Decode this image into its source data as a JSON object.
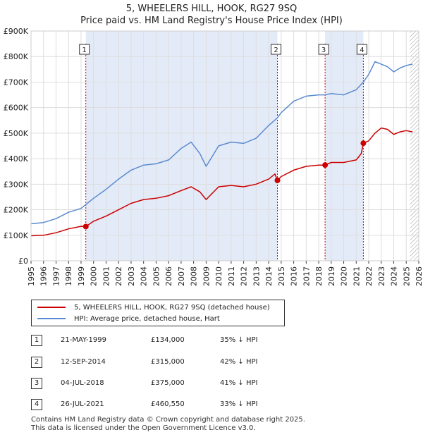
{
  "title_line1": "5, WHEELERS HILL, HOOK, RG27 9SQ",
  "title_line2": "Price paid vs. HM Land Registry's House Price Index (HPI)",
  "colors": {
    "property": "#cc0000",
    "hpi": "#5b8bd0",
    "shade": "#e4ebf8",
    "marker_line": "#cc0000"
  },
  "chart_data": {
    "type": "line",
    "ylim": [
      0,
      900000
    ],
    "xlim": [
      1995,
      2026
    ],
    "y_ticks": [
      0,
      100000,
      200000,
      300000,
      400000,
      500000,
      600000,
      700000,
      800000,
      900000
    ],
    "y_tick_labels": [
      "£0",
      "£100K",
      "£200K",
      "£300K",
      "£400K",
      "£500K",
      "£600K",
      "£700K",
      "£800K",
      "£900K"
    ],
    "x_ticks": [
      1995,
      1996,
      1997,
      1998,
      1999,
      2000,
      2001,
      2002,
      2003,
      2004,
      2005,
      2006,
      2007,
      2008,
      2009,
      2010,
      2011,
      2012,
      2013,
      2014,
      2015,
      2016,
      2017,
      2018,
      2019,
      2020,
      2021,
      2022,
      2023,
      2024,
      2025,
      2026
    ],
    "shaded_ranges": [
      [
        1999.38,
        2014.7
      ],
      [
        2018.51,
        2021.57
      ]
    ],
    "hatched_after": 2025.3,
    "series": [
      {
        "name": "5, WHEELERS HILL, HOOK, RG27 9SQ (detached house)",
        "points": [
          [
            1995.0,
            98000
          ],
          [
            1996.0,
            100000
          ],
          [
            1997.0,
            110000
          ],
          [
            1998.0,
            125000
          ],
          [
            1999.0,
            135000
          ],
          [
            1999.38,
            134000
          ],
          [
            2000.0,
            155000
          ],
          [
            2001.0,
            175000
          ],
          [
            2002.0,
            200000
          ],
          [
            2003.0,
            225000
          ],
          [
            2004.0,
            240000
          ],
          [
            2005.0,
            245000
          ],
          [
            2006.0,
            255000
          ],
          [
            2007.0,
            275000
          ],
          [
            2007.8,
            290000
          ],
          [
            2008.5,
            270000
          ],
          [
            2009.0,
            240000
          ],
          [
            2009.5,
            265000
          ],
          [
            2010.0,
            290000
          ],
          [
            2011.0,
            295000
          ],
          [
            2012.0,
            290000
          ],
          [
            2013.0,
            300000
          ],
          [
            2014.0,
            320000
          ],
          [
            2014.5,
            340000
          ],
          [
            2014.7,
            315000
          ],
          [
            2015.0,
            330000
          ],
          [
            2016.0,
            355000
          ],
          [
            2017.0,
            370000
          ],
          [
            2018.0,
            375000
          ],
          [
            2018.51,
            375000
          ],
          [
            2019.0,
            385000
          ],
          [
            2020.0,
            385000
          ],
          [
            2021.0,
            395000
          ],
          [
            2021.4,
            420000
          ],
          [
            2021.57,
            460550
          ],
          [
            2022.0,
            470000
          ],
          [
            2022.5,
            500000
          ],
          [
            2023.0,
            520000
          ],
          [
            2023.5,
            515000
          ],
          [
            2024.0,
            495000
          ],
          [
            2024.5,
            505000
          ],
          [
            2025.0,
            510000
          ],
          [
            2025.5,
            505000
          ]
        ]
      },
      {
        "name": "HPI: Average price, detached house, Hart",
        "points": [
          [
            1995.0,
            145000
          ],
          [
            1996.0,
            150000
          ],
          [
            1997.0,
            165000
          ],
          [
            1998.0,
            190000
          ],
          [
            1999.0,
            205000
          ],
          [
            2000.0,
            245000
          ],
          [
            2001.0,
            280000
          ],
          [
            2002.0,
            320000
          ],
          [
            2003.0,
            355000
          ],
          [
            2004.0,
            375000
          ],
          [
            2005.0,
            380000
          ],
          [
            2006.0,
            395000
          ],
          [
            2007.0,
            440000
          ],
          [
            2007.8,
            465000
          ],
          [
            2008.5,
            420000
          ],
          [
            2009.0,
            370000
          ],
          [
            2009.5,
            410000
          ],
          [
            2010.0,
            450000
          ],
          [
            2011.0,
            465000
          ],
          [
            2012.0,
            460000
          ],
          [
            2013.0,
            480000
          ],
          [
            2014.0,
            530000
          ],
          [
            2014.7,
            560000
          ],
          [
            2015.0,
            580000
          ],
          [
            2016.0,
            625000
          ],
          [
            2017.0,
            645000
          ],
          [
            2018.0,
            650000
          ],
          [
            2018.5,
            650000
          ],
          [
            2019.0,
            655000
          ],
          [
            2020.0,
            650000
          ],
          [
            2021.0,
            670000
          ],
          [
            2021.57,
            700000
          ],
          [
            2022.0,
            730000
          ],
          [
            2022.5,
            780000
          ],
          [
            2023.0,
            770000
          ],
          [
            2023.5,
            760000
          ],
          [
            2024.0,
            740000
          ],
          [
            2024.5,
            755000
          ],
          [
            2025.0,
            765000
          ],
          [
            2025.5,
            770000
          ]
        ]
      }
    ],
    "markers": [
      {
        "label": "1",
        "x": 1999.38,
        "y": 134000
      },
      {
        "label": "2",
        "x": 2014.7,
        "y": 315000
      },
      {
        "label": "3",
        "x": 2018.51,
        "y": 375000
      },
      {
        "label": "4",
        "x": 2021.57,
        "y": 460550
      }
    ]
  },
  "legend": {
    "property_label": "5, WHEELERS HILL, HOOK, RG27 9SQ (detached house)",
    "hpi_label": "HPI: Average price, detached house, Hart"
  },
  "transactions": [
    {
      "num": "1",
      "date": "21-MAY-1999",
      "price": "£134,000",
      "hpi": "35% ↓ HPI"
    },
    {
      "num": "2",
      "date": "12-SEP-2014",
      "price": "£315,000",
      "hpi": "42% ↓ HPI"
    },
    {
      "num": "3",
      "date": "04-JUL-2018",
      "price": "£375,000",
      "hpi": "41% ↓ HPI"
    },
    {
      "num": "4",
      "date": "26-JUL-2021",
      "price": "£460,550",
      "hpi": "33% ↓ HPI"
    }
  ],
  "footer_line1": "Contains HM Land Registry data © Crown copyright and database right 2025.",
  "footer_line2": "This data is licensed under the Open Government Licence v3.0."
}
